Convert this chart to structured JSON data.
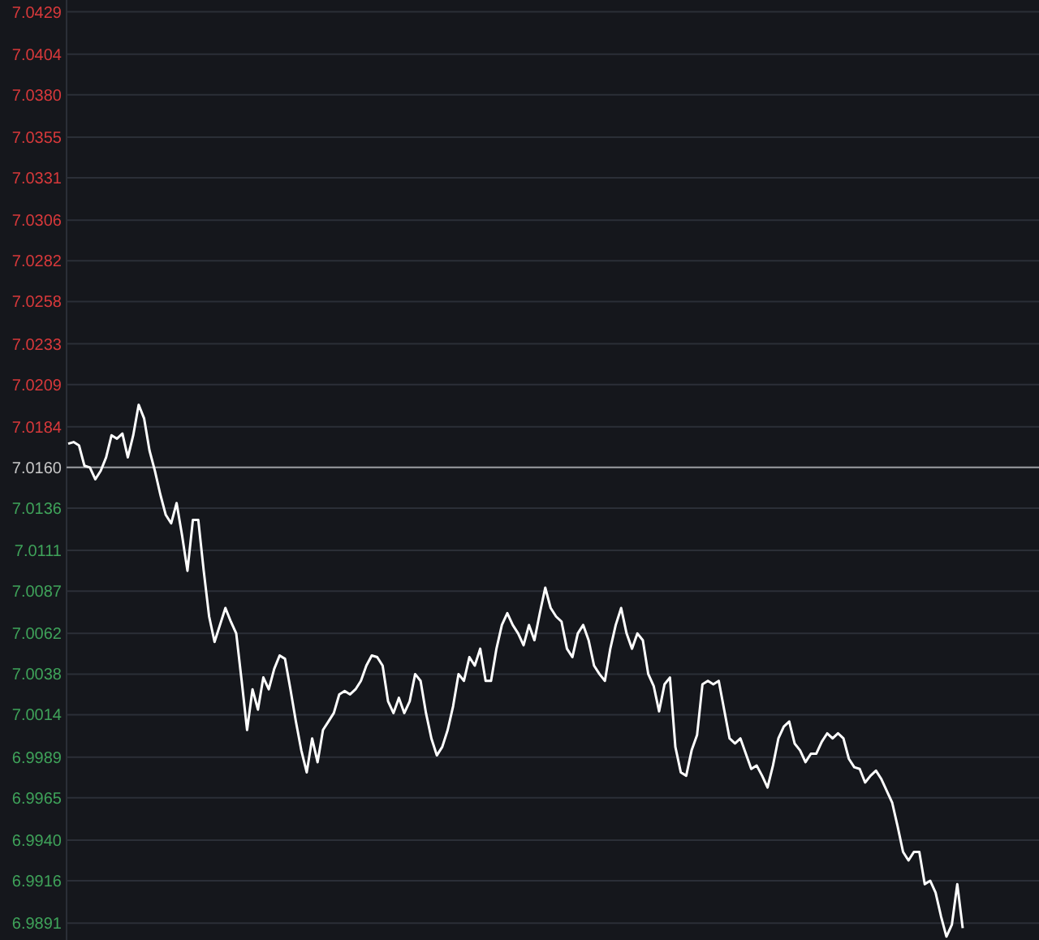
{
  "chart_data": {
    "type": "line",
    "categories": [
      null,
      null,
      null,
      null,
      null,
      null,
      null,
      null,
      null,
      null,
      null,
      null,
      null,
      null,
      null,
      null,
      null,
      null,
      null,
      null,
      null,
      null,
      null,
      null,
      null,
      null,
      null,
      null,
      null,
      null,
      null,
      null,
      null,
      null,
      null,
      null,
      null,
      null,
      null,
      null,
      null,
      null,
      null,
      null,
      null,
      null,
      null,
      null,
      null,
      null,
      null,
      null,
      null,
      null,
      null,
      null,
      null,
      null,
      null,
      null,
      null,
      null,
      null,
      null,
      null,
      null,
      null,
      null,
      null,
      null,
      null,
      null,
      null,
      null,
      null,
      null,
      null,
      null,
      null,
      null,
      null,
      null,
      null,
      null,
      null,
      null,
      null,
      null,
      null,
      null,
      null,
      null,
      null,
      null,
      null,
      null,
      null,
      null,
      null,
      null,
      null,
      null,
      null,
      null,
      null,
      null,
      null,
      null,
      null,
      null,
      null,
      null,
      null,
      null,
      null,
      null,
      null,
      null,
      null,
      null,
      null,
      null,
      null,
      null,
      null,
      null,
      null,
      null,
      null,
      null,
      null,
      null,
      null,
      null,
      null,
      null,
      null,
      null,
      null,
      null,
      null,
      null,
      null,
      null,
      null,
      null,
      null,
      null,
      null,
      null,
      null,
      null,
      null,
      null,
      null,
      null,
      null,
      null,
      null,
      null,
      null,
      null,
      null,
      null,
      null,
      null
    ],
    "series": [
      {
        "color": "#ffffff",
        "values": [
          7.0174,
          7.0175,
          7.0173,
          7.0161,
          7.016,
          7.0153,
          7.0158,
          7.0166,
          7.0179,
          7.0177,
          7.018,
          7.0166,
          7.0179,
          7.0197,
          7.0189,
          7.017,
          7.0158,
          7.0144,
          7.0132,
          7.0127,
          7.0139,
          7.012,
          7.0099,
          7.0129,
          7.0129,
          7.0099,
          7.0072,
          7.0057,
          7.0067,
          7.0077,
          7.0069,
          7.0062,
          7.0034,
          7.0005,
          7.0029,
          7.0017,
          7.0036,
          7.0029,
          7.0041,
          7.0049,
          7.0047,
          7.0029,
          7.001,
          6.9993,
          6.998,
          7.0,
          6.9986,
          7.0005,
          7.001,
          7.0015,
          7.0026,
          7.0028,
          7.0026,
          7.0029,
          7.0034,
          7.0043,
          7.0049,
          7.0048,
          7.0043,
          7.0022,
          7.0015,
          7.0024,
          7.0015,
          7.0022,
          7.0038,
          7.0034,
          7.0015,
          7.0,
          6.999,
          6.9995,
          7.0005,
          7.0019,
          7.0038,
          7.0034,
          7.0048,
          7.0043,
          7.0053,
          7.0034,
          7.0034,
          7.0053,
          7.0067,
          7.0074,
          7.0067,
          7.0062,
          7.0055,
          7.0067,
          7.0058,
          7.0074,
          7.0089,
          7.0077,
          7.0072,
          7.0069,
          7.0053,
          7.0048,
          7.0062,
          7.0067,
          7.0058,
          7.0043,
          7.0038,
          7.0034,
          7.0053,
          7.0067,
          7.0077,
          7.0062,
          7.0053,
          7.0062,
          7.0058,
          7.0038,
          7.0031,
          7.0016,
          7.0032,
          7.0036,
          6.9995,
          6.998,
          6.9978,
          6.9993,
          7.0002,
          7.0032,
          7.0034,
          7.0032,
          7.0034,
          7.0017,
          7.0,
          6.9997,
          7.0,
          6.9991,
          6.9982,
          6.9984,
          6.9978,
          6.9971,
          6.9984,
          7.0,
          7.0007,
          7.001,
          6.9997,
          6.9993,
          6.9986,
          6.9991,
          6.9991,
          6.9998,
          7.0003,
          7.0,
          7.0003,
          7.0,
          6.9988,
          6.9983,
          6.9982,
          6.9974,
          6.9978,
          6.9981,
          6.9976,
          6.9969,
          6.9962,
          6.9948,
          6.9933,
          6.9928,
          6.9933,
          6.9933,
          6.9914,
          6.9916,
          6.9909,
          6.9895,
          6.9883,
          6.989,
          6.9914,
          6.9888
        ]
      }
    ],
    "ylim": [
      6.9881,
      7.0436
    ],
    "yticks": [
      6.9891,
      6.9916,
      {
        "value": 6.994,
        "label": "6.9940"
      },
      6.9965,
      6.9989,
      7.0014,
      7.0038,
      7.0062,
      7.0087,
      7.0111,
      7.0136,
      {
        "value": 7.016,
        "label": "7.0160"
      },
      7.0184,
      7.0209,
      7.0233,
      7.0258,
      7.0282,
      7.0306,
      7.0331,
      7.0355,
      {
        "value": 7.038,
        "label": "7.0380"
      },
      7.0404,
      7.0429
    ],
    "grid": "y",
    "ref_lines": [
      {
        "axis": "y",
        "value": 7.016,
        "color": "#9a9ca0"
      }
    ],
    "marker": "none",
    "line_style": "solid"
  }
}
